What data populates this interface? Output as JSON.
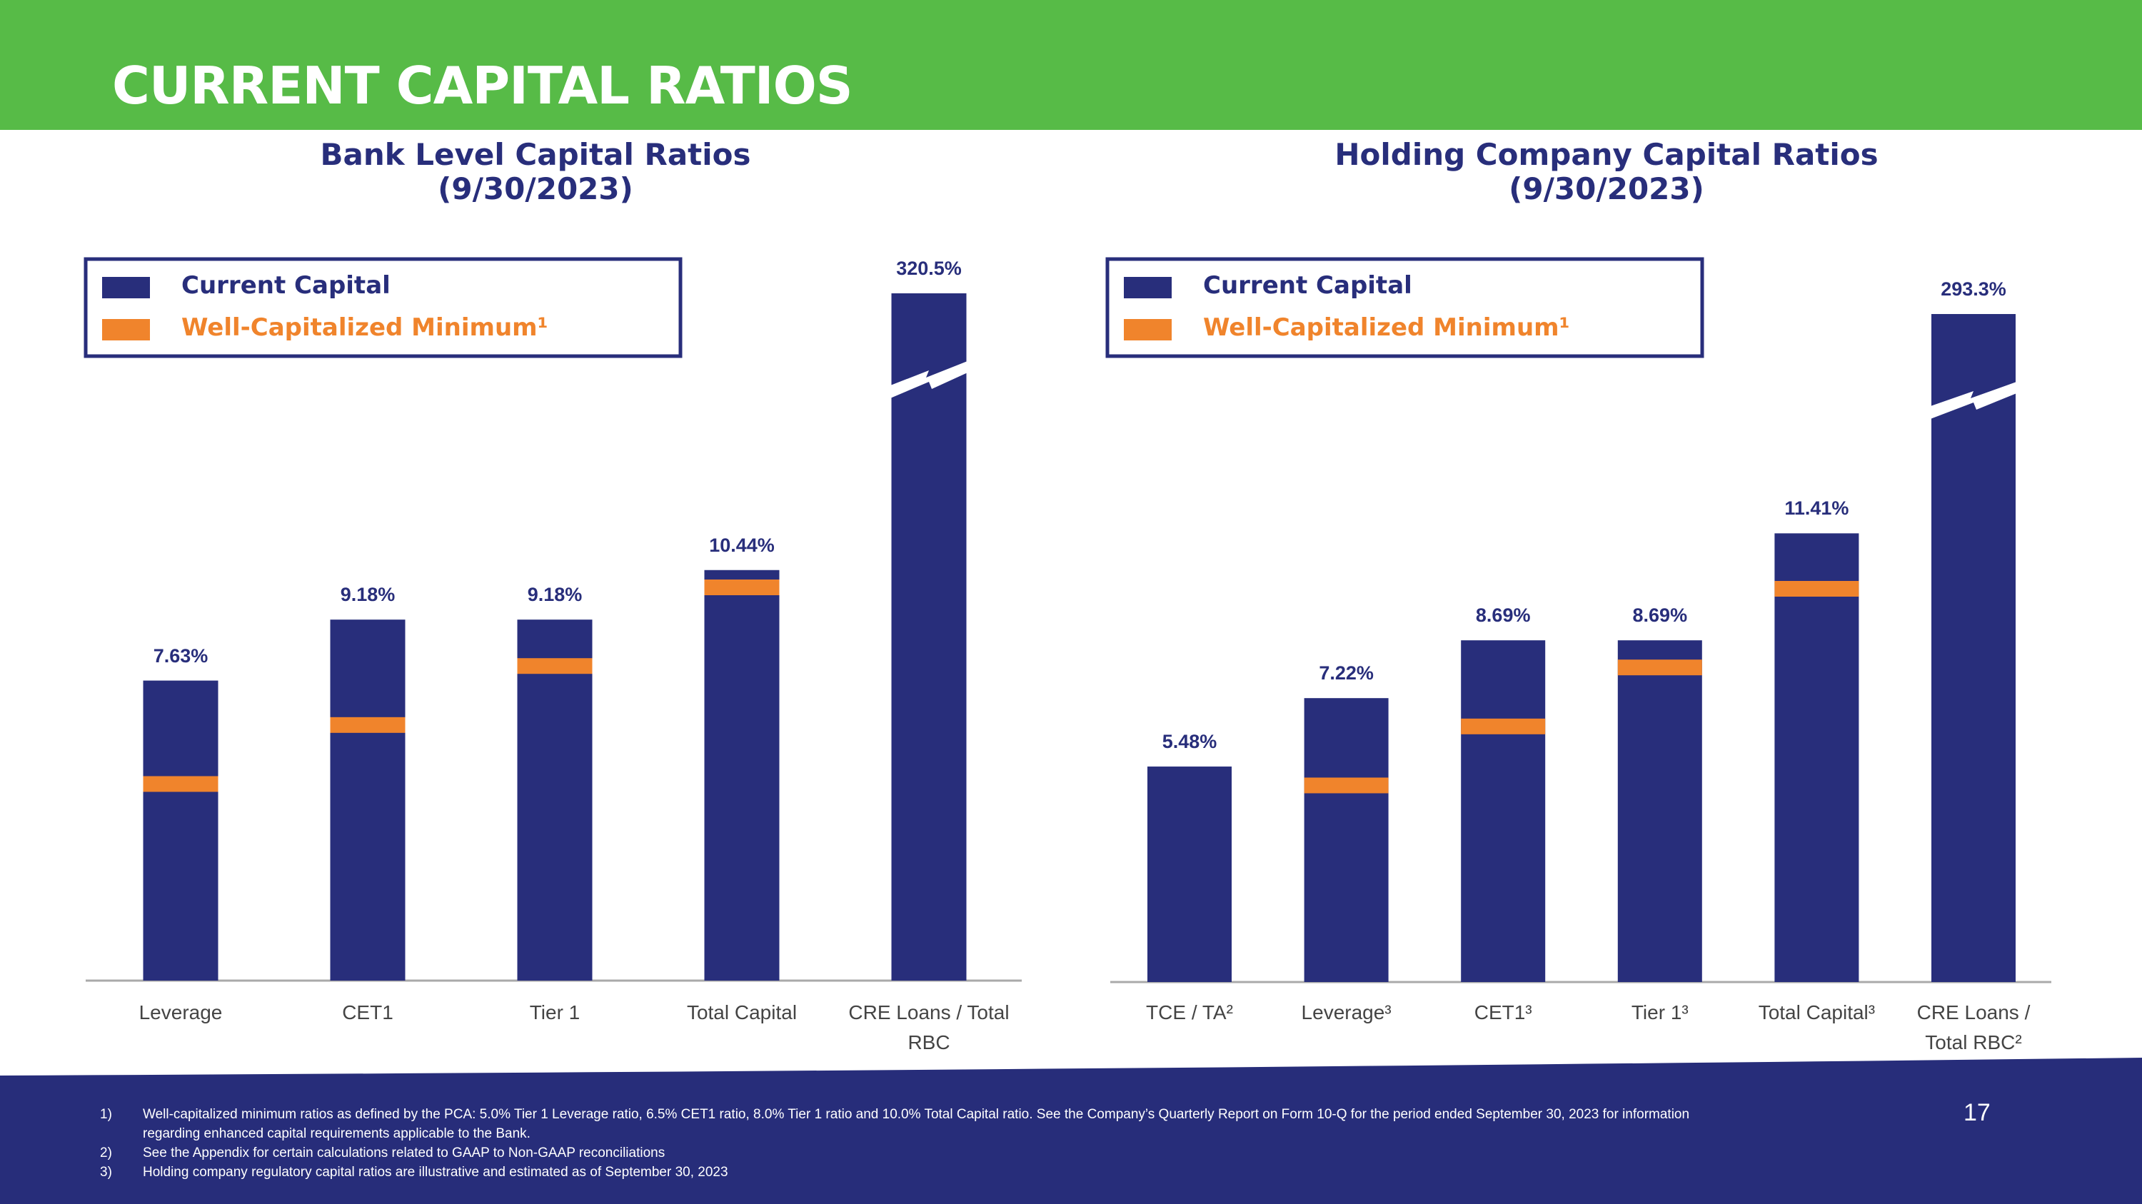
{
  "header": {
    "title": "CURRENT CAPITAL RATIOS"
  },
  "chart_data": [
    {
      "type": "bar",
      "title": "Bank Level Capital Ratios",
      "subtitle": "(9/30/2023)",
      "categories": [
        "Leverage",
        "CET1",
        "Tier 1",
        "Total Capital",
        "CRE Loans / Total RBC"
      ],
      "series": [
        {
          "name": "Current Capital",
          "color": "#282e7b",
          "values": [
            7.63,
            9.18,
            9.18,
            10.44,
            320.5
          ],
          "value_labels": [
            "7.63%",
            "9.18%",
            "9.18%",
            "10.44%",
            "320.5%"
          ]
        },
        {
          "name": "Well-Capitalized Minimum¹",
          "color": "#f0842c",
          "values": [
            5.0,
            6.5,
            8.0,
            10.0,
            null
          ]
        }
      ]
    },
    {
      "type": "bar",
      "title": "Holding Company Capital Ratios",
      "subtitle": "(9/30/2023)",
      "categories": [
        "TCE / TA²",
        "Leverage³",
        "CET1³",
        "Tier 1³",
        "Total Capital³",
        "CRE Loans / Total RBC²"
      ],
      "series": [
        {
          "name": "Current Capital",
          "color": "#282e7b",
          "values": [
            5.48,
            7.22,
            8.69,
            8.69,
            11.41,
            293.3
          ],
          "value_labels": [
            "5.48%",
            "7.22%",
            "8.69%",
            "8.69%",
            "11.41%",
            "293.3%"
          ]
        },
        {
          "name": "Well-Capitalized Minimum¹",
          "color": "#f0842c",
          "values": [
            null,
            5.0,
            6.5,
            8.0,
            10.0,
            null
          ]
        }
      ]
    }
  ],
  "footnotes": [
    {
      "marker": "1)",
      "text": "Well-capitalized minimum ratios as defined by the PCA: 5.0% Tier 1 Leverage ratio, 6.5% CET1 ratio, 8.0% Tier 1 ratio and 10.0% Total Capital ratio. See the Company’s Quarterly Report on Form 10-Q for the period ended September 30, 2023 for information regarding enhanced capital requirements applicable to the Bank."
    },
    {
      "marker": "2)",
      "text": "See the Appendix for certain calculations related to GAAP to Non-GAAP reconciliations"
    },
    {
      "marker": "3)",
      "text": "Holding company regulatory capital ratios are illustrative and estimated as of September 30, 2023"
    }
  ],
  "page_number": "17"
}
